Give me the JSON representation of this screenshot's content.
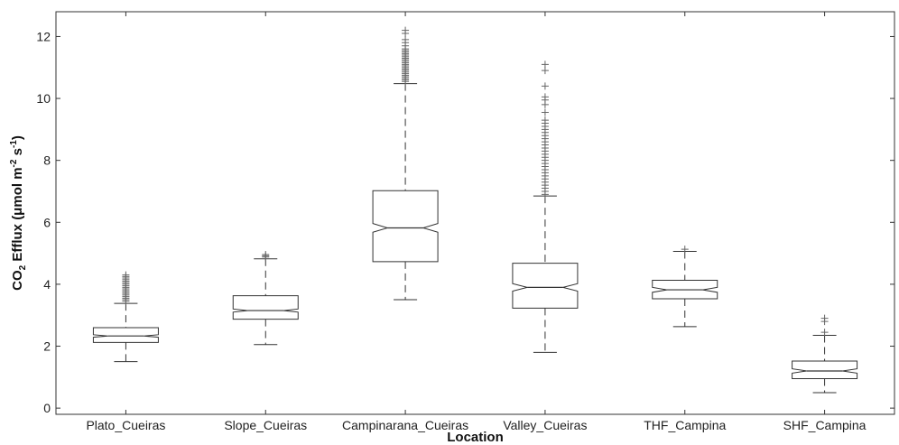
{
  "chart_data": {
    "type": "box",
    "xlabel": "Location",
    "ylabel_parts": [
      "CO",
      "2",
      " Efflux (μmol m",
      "-2",
      " s",
      "-1",
      ")"
    ],
    "ylim": [
      -0.2,
      12.8
    ],
    "yticks": [
      0,
      2,
      4,
      6,
      8,
      10,
      12
    ],
    "notched": true,
    "categories": [
      "Plato_Cueiras",
      "Slope_Cueiras",
      "Campinarana_Cueiras",
      "Valley_Cueiras",
      "THF_Campina",
      "SHF_Campina"
    ],
    "boxes": [
      {
        "category": "Plato_Cueiras",
        "whisker_low": 1.5,
        "q1": 2.12,
        "median": 2.33,
        "q3": 2.6,
        "whisker_high": 3.38,
        "notch_low": 2.29,
        "notch_high": 2.37,
        "outliers": [
          3.45,
          3.5,
          3.55,
          3.6,
          3.65,
          3.7,
          3.75,
          3.8,
          3.85,
          3.9,
          3.95,
          4.0,
          4.05,
          4.1,
          4.15,
          4.2,
          4.25,
          4.3
        ]
      },
      {
        "category": "Slope_Cueiras",
        "whisker_low": 2.05,
        "q1": 2.87,
        "median": 3.15,
        "q3": 3.63,
        "whisker_high": 4.82,
        "notch_low": 3.1,
        "notch_high": 3.2,
        "outliers": [
          4.88,
          4.92,
          4.96
        ]
      },
      {
        "category": "Campinarana_Cueiras",
        "whisker_low": 3.5,
        "q1": 4.73,
        "median": 5.82,
        "q3": 7.02,
        "whisker_high": 10.48,
        "notch_low": 5.68,
        "notch_high": 5.96,
        "outliers": [
          10.55,
          10.6,
          10.65,
          10.7,
          10.75,
          10.8,
          10.85,
          10.9,
          10.95,
          11.0,
          11.05,
          11.1,
          11.15,
          11.2,
          11.25,
          11.3,
          11.35,
          11.4,
          11.45,
          11.5,
          11.55,
          11.6,
          11.7,
          11.8,
          11.9,
          12.1,
          12.2
        ]
      },
      {
        "category": "Valley_Cueiras",
        "whisker_low": 1.8,
        "q1": 3.23,
        "median": 3.9,
        "q3": 4.68,
        "whisker_high": 6.85,
        "notch_low": 3.78,
        "notch_high": 4.02,
        "outliers": [
          6.9,
          7.0,
          7.1,
          7.2,
          7.3,
          7.4,
          7.5,
          7.6,
          7.7,
          7.8,
          7.9,
          8.0,
          8.1,
          8.2,
          8.3,
          8.4,
          8.5,
          8.6,
          8.7,
          8.8,
          8.9,
          9.0,
          9.1,
          9.2,
          9.3,
          9.55,
          9.8,
          9.95,
          10.05,
          10.4,
          10.9,
          11.1
        ]
      },
      {
        "category": "THF_Campina",
        "whisker_low": 2.63,
        "q1": 3.53,
        "median": 3.82,
        "q3": 4.13,
        "whisker_high": 5.06,
        "notch_low": 3.74,
        "notch_high": 3.9,
        "outliers": [
          5.13
        ]
      },
      {
        "category": "SHF_Campina",
        "whisker_low": 0.5,
        "q1": 0.95,
        "median": 1.2,
        "q3": 1.52,
        "whisker_high": 2.35,
        "notch_low": 1.13,
        "notch_high": 1.27,
        "outliers": [
          2.45,
          2.8,
          2.9
        ]
      }
    ],
    "colors": {
      "axis": "#333333",
      "box": "#333333",
      "whisker": "#333333",
      "outlier": "#666666",
      "background": "#ffffff"
    }
  }
}
